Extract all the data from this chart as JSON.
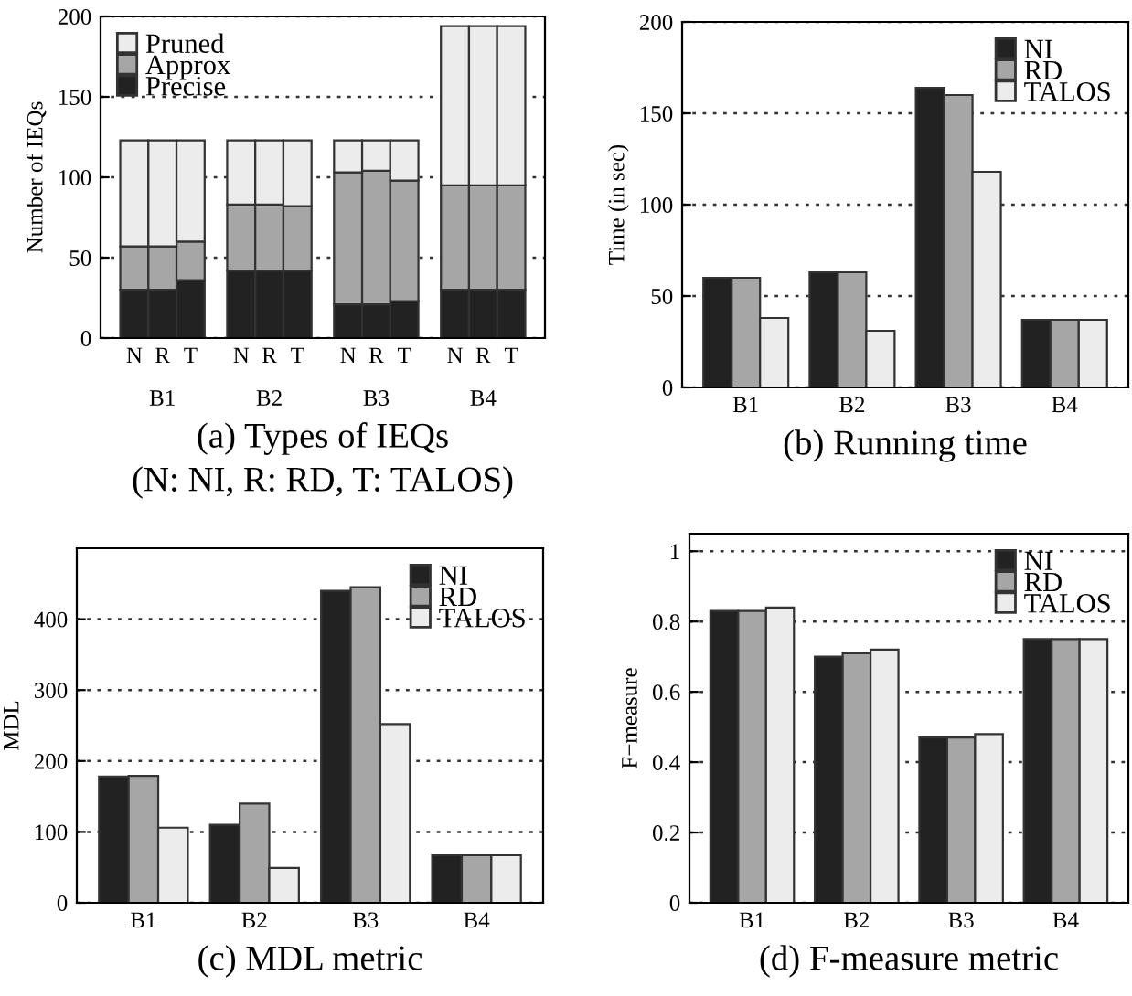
{
  "chart_data": [
    {
      "type": "bar",
      "title": "(a) Types of IEQs",
      "subtitle": "(N: NI, R: RD, T: TALOS)",
      "ylabel": "Number of IEQs",
      "stacked": true,
      "categories": [
        "N",
        "R",
        "T",
        "N",
        "R",
        "T",
        "N",
        "R",
        "T",
        "N",
        "R",
        "T"
      ],
      "series": [
        {
          "name": "Precise",
          "color": "#222222",
          "values": [
            30,
            30,
            36,
            42,
            42,
            42,
            21,
            21,
            23,
            30,
            30,
            30
          ]
        },
        {
          "name": "Approx",
          "color": "#a6a6a6",
          "values": [
            27,
            27,
            24,
            41,
            41,
            40,
            82,
            83,
            75,
            65,
            65,
            65
          ]
        },
        {
          "name": "Pruned",
          "color": "#ececec",
          "values": [
            66,
            66,
            63,
            40,
            40,
            41,
            20,
            19,
            25,
            99,
            99,
            99
          ]
        }
      ],
      "annotations": [
        "B1",
        "B2",
        "B3",
        "B4"
      ],
      "ylim": [
        0,
        200
      ],
      "yticks": [
        0,
        50,
        100,
        150,
        200
      ],
      "grid": "y",
      "legend": "top left"
    },
    {
      "type": "bar",
      "title": "(b) Running time",
      "ylabel": "Time (in sec)",
      "categories": [
        "B1",
        "B2",
        "B3",
        "B4"
      ],
      "series": [
        {
          "name": "NI",
          "color": "#222222",
          "values": [
            60,
            63,
            164,
            37
          ]
        },
        {
          "name": "RD",
          "color": "#a6a6a6",
          "values": [
            60,
            63,
            160,
            37
          ]
        },
        {
          "name": "TALOS",
          "color": "#ececec",
          "values": [
            38,
            31,
            118,
            37
          ]
        }
      ],
      "ylim": [
        0,
        200
      ],
      "yticks": [
        0,
        50,
        100,
        150,
        200
      ],
      "grid": "y",
      "legend": "top right"
    },
    {
      "type": "bar",
      "title": "(c) MDL metric",
      "ylabel": "MDL",
      "categories": [
        "B1",
        "B2",
        "B3",
        "B4"
      ],
      "series": [
        {
          "name": "NI",
          "color": "#222222",
          "values": [
            178,
            110,
            440,
            67
          ]
        },
        {
          "name": "RD",
          "color": "#a6a6a6",
          "values": [
            179,
            140,
            445,
            67
          ]
        },
        {
          "name": "TALOS",
          "color": "#ececec",
          "values": [
            106,
            49,
            252,
            67
          ]
        }
      ],
      "ylim": [
        0,
        500
      ],
      "yticks": [
        0,
        100,
        200,
        300,
        400
      ],
      "grid": "y",
      "legend": "top right"
    },
    {
      "type": "bar",
      "title": "(d) F-measure metric",
      "ylabel": "F−measure",
      "categories": [
        "B1",
        "B2",
        "B3",
        "B4"
      ],
      "series": [
        {
          "name": "NI",
          "color": "#222222",
          "values": [
            0.83,
            0.7,
            0.47,
            0.75
          ]
        },
        {
          "name": "RD",
          "color": "#a6a6a6",
          "values": [
            0.83,
            0.71,
            0.47,
            0.75
          ]
        },
        {
          "name": "TALOS",
          "color": "#ececec",
          "values": [
            0.84,
            0.72,
            0.48,
            0.75
          ]
        }
      ],
      "ylim": [
        0,
        1.05
      ],
      "yticks": [
        0,
        0.2,
        0.4,
        0.6,
        0.8,
        1
      ],
      "grid": "y",
      "legend": "top right"
    }
  ]
}
